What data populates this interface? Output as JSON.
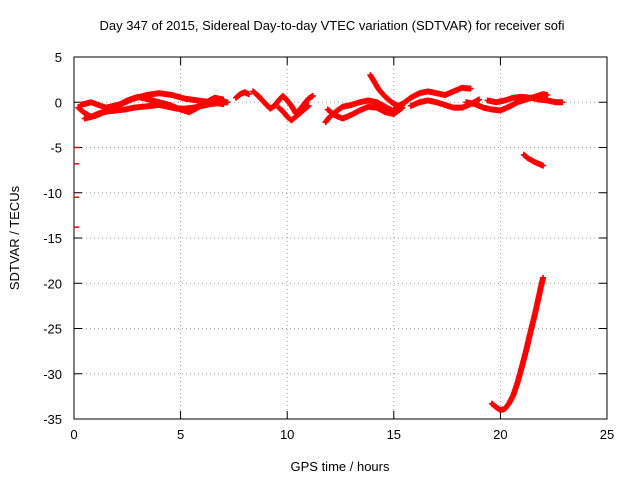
{
  "chart_data": {
    "type": "scatter",
    "title": "Day 347 of 2015, Sidereal Day-to-day VTEC variation (SDTVAR) for receiver sofi",
    "xlabel": "GPS time / hours",
    "ylabel": "SDTVAR / TECUs",
    "xlim": [
      0,
      25
    ],
    "ylim": [
      -35,
      5
    ],
    "xticks": [
      "0",
      "5",
      "10",
      "15",
      "20",
      "25"
    ],
    "yticks": [
      "5",
      "0",
      "-5",
      "-10",
      "-15",
      "-20",
      "-25",
      "-30",
      "-35"
    ],
    "grid": true,
    "legend": "none",
    "color": "#ff0000",
    "series": [
      {
        "values": [
          [
            0.2,
            -0.6
          ],
          [
            0.5,
            -1.2
          ],
          [
            0.8,
            -1.6
          ],
          [
            1.2,
            -1.2
          ],
          [
            1.6,
            -1.0
          ],
          [
            2.0,
            -0.9
          ],
          [
            2.4,
            -0.8
          ],
          [
            2.8,
            -0.6
          ],
          [
            3.2,
            -0.5
          ],
          [
            3.6,
            -0.4
          ],
          [
            4.0,
            -0.3
          ],
          [
            4.4,
            -0.5
          ],
          [
            4.8,
            -0.7
          ],
          [
            5.2,
            -0.7
          ],
          [
            5.6,
            -0.6
          ],
          [
            6.0,
            -0.4
          ],
          [
            6.4,
            -0.2
          ],
          [
            6.8,
            -0.1
          ],
          [
            7.2,
            0.0
          ]
        ]
      },
      {
        "values": [
          [
            0.5,
            -1.8
          ],
          [
            1.0,
            -1.5
          ],
          [
            1.5,
            -1.0
          ],
          [
            2.0,
            -0.4
          ],
          [
            2.5,
            0.2
          ],
          [
            3.0,
            0.6
          ],
          [
            3.5,
            0.3
          ],
          [
            4.0,
            0.0
          ],
          [
            4.5,
            -0.3
          ],
          [
            5.0,
            -0.8
          ],
          [
            5.4,
            -1.1
          ],
          [
            5.8,
            -0.6
          ],
          [
            6.2,
            0.0
          ],
          [
            6.6,
            0.5
          ],
          [
            7.0,
            0.3
          ]
        ]
      },
      {
        "values": [
          [
            0.3,
            -0.3
          ],
          [
            0.8,
            0.0
          ],
          [
            1.5,
            -0.6
          ],
          [
            2.2,
            -0.2
          ],
          [
            2.8,
            0.4
          ],
          [
            3.4,
            0.8
          ],
          [
            4.0,
            1.0
          ],
          [
            4.6,
            0.8
          ],
          [
            5.2,
            0.4
          ],
          [
            5.8,
            0.2
          ],
          [
            6.4,
            0.0
          ],
          [
            7.0,
            -0.2
          ]
        ]
      },
      {
        "values": [
          [
            7.6,
            0.5
          ],
          [
            7.8,
            0.9
          ],
          [
            8.0,
            1.1
          ],
          [
            8.2,
            0.9
          ]
        ]
      },
      {
        "values": [
          [
            8.4,
            1.2
          ],
          [
            8.6,
            0.8
          ],
          [
            8.8,
            0.3
          ],
          [
            9.0,
            -0.2
          ],
          [
            9.2,
            -0.7
          ],
          [
            9.4,
            -0.4
          ],
          [
            9.6,
            0.2
          ],
          [
            9.8,
            0.7
          ],
          [
            10.0,
            0.2
          ],
          [
            10.2,
            -0.4
          ],
          [
            10.4,
            -1.2
          ],
          [
            10.6,
            -0.8
          ],
          [
            10.8,
            -0.2
          ],
          [
            11.0,
            0.4
          ],
          [
            11.2,
            0.7
          ]
        ]
      },
      {
        "values": [
          [
            9.6,
            -0.6
          ],
          [
            9.8,
            -1.0
          ],
          [
            10.0,
            -1.6
          ],
          [
            10.2,
            -2.0
          ],
          [
            10.4,
            -1.6
          ],
          [
            10.6,
            -1.2
          ],
          [
            10.8,
            -0.8
          ],
          [
            11.0,
            -0.4
          ]
        ]
      },
      {
        "values": [
          [
            11.8,
            -2.2
          ],
          [
            12.0,
            -1.6
          ],
          [
            12.3,
            -1.0
          ],
          [
            12.6,
            -0.5
          ],
          [
            13.0,
            -0.3
          ],
          [
            13.4,
            0.0
          ],
          [
            13.8,
            0.2
          ],
          [
            14.2,
            0.0
          ],
          [
            14.6,
            -0.5
          ],
          [
            15.0,
            -1.0
          ]
        ]
      },
      {
        "values": [
          [
            11.9,
            -0.8
          ],
          [
            12.2,
            -1.4
          ],
          [
            12.6,
            -1.8
          ],
          [
            13.0,
            -1.4
          ],
          [
            13.4,
            -0.9
          ],
          [
            13.8,
            -0.5
          ],
          [
            14.2,
            -0.6
          ],
          [
            14.6,
            -1.1
          ],
          [
            15.0,
            -1.3
          ],
          [
            15.4,
            -0.6
          ]
        ]
      },
      {
        "values": [
          [
            13.9,
            3.0
          ],
          [
            14.1,
            2.2
          ],
          [
            14.3,
            1.4
          ],
          [
            14.6,
            0.6
          ],
          [
            14.9,
            0.0
          ],
          [
            15.2,
            -0.4
          ],
          [
            15.5,
            -0.1
          ]
        ]
      },
      {
        "values": [
          [
            15.0,
            -0.8
          ],
          [
            15.4,
            -0.2
          ],
          [
            15.8,
            0.5
          ],
          [
            16.2,
            1.0
          ],
          [
            16.6,
            1.2
          ],
          [
            17.0,
            1.0
          ],
          [
            17.4,
            0.8
          ],
          [
            17.8,
            1.2
          ],
          [
            18.2,
            1.6
          ],
          [
            18.6,
            1.5
          ]
        ]
      },
      {
        "values": [
          [
            15.8,
            -0.4
          ],
          [
            16.2,
            0.0
          ],
          [
            16.6,
            0.2
          ],
          [
            17.0,
            0.0
          ],
          [
            17.4,
            -0.3
          ],
          [
            17.8,
            -0.6
          ],
          [
            18.2,
            -0.6
          ],
          [
            18.6,
            -0.2
          ],
          [
            19.0,
            0.3
          ]
        ]
      },
      {
        "values": [
          [
            18.4,
            0.0
          ],
          [
            18.8,
            -0.2
          ],
          [
            19.2,
            -0.6
          ],
          [
            19.6,
            -0.8
          ],
          [
            20.0,
            -0.9
          ],
          [
            20.4,
            -0.5
          ],
          [
            20.8,
            0.0
          ],
          [
            21.2,
            0.3
          ],
          [
            21.6,
            0.6
          ],
          [
            22.0,
            0.9
          ],
          [
            22.2,
            0.8
          ]
        ]
      },
      {
        "values": [
          [
            19.4,
            0.2
          ],
          [
            19.8,
            0.0
          ],
          [
            20.2,
            0.2
          ],
          [
            20.6,
            0.5
          ],
          [
            21.0,
            0.6
          ],
          [
            21.4,
            0.5
          ],
          [
            21.8,
            0.3
          ],
          [
            22.2,
            0.2
          ],
          [
            22.6,
            0.0
          ],
          [
            22.9,
            0.0
          ]
        ]
      },
      {
        "values": [
          [
            21.1,
            -5.8
          ],
          [
            21.3,
            -6.2
          ],
          [
            21.6,
            -6.6
          ],
          [
            21.9,
            -6.9
          ],
          [
            22.0,
            -7.0
          ]
        ]
      },
      {
        "values": [
          [
            19.6,
            -33.3
          ],
          [
            19.8,
            -33.7
          ],
          [
            20.0,
            -34.0
          ],
          [
            20.2,
            -33.9
          ],
          [
            20.4,
            -33.3
          ],
          [
            20.6,
            -32.4
          ],
          [
            20.8,
            -31.0
          ],
          [
            21.0,
            -29.3
          ],
          [
            21.2,
            -27.5
          ],
          [
            21.4,
            -25.5
          ],
          [
            21.6,
            -23.6
          ],
          [
            21.8,
            -21.5
          ],
          [
            21.9,
            -20.4
          ],
          [
            22.0,
            -19.4
          ]
        ]
      },
      {
        "values": [
          [
            0.0,
            -5.0
          ],
          [
            0.0,
            -6.8
          ],
          [
            0.0,
            -10.5
          ],
          [
            0.0,
            -13.8
          ]
        ]
      }
    ]
  }
}
